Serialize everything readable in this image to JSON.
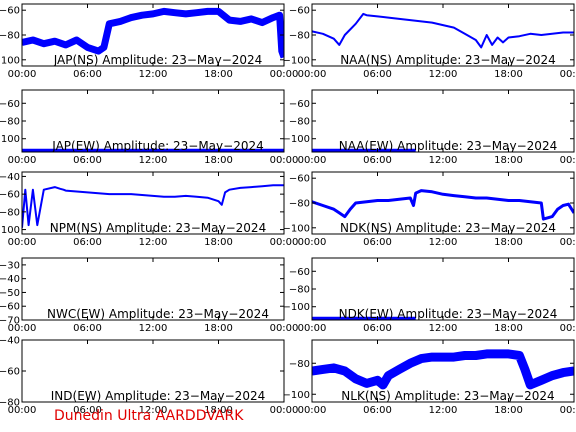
{
  "footer": "Dunedin Ultra AARDDVARK",
  "x_ticks": [
    "00:00",
    "06:00",
    "12:00",
    "18:00",
    "00:00"
  ],
  "chart_data": [
    {
      "type": "line",
      "title": "JAP(NS) Amplitude: 23−May−2024",
      "xlabel": "",
      "ylabel": "",
      "xlim": [
        0,
        24
      ],
      "ylim": [
        -105,
        -55
      ],
      "y_ticks": [
        -100,
        -80,
        -60
      ],
      "series": [
        {
          "color": "#0000ff",
          "band": 7,
          "x": [
            0,
            1,
            2,
            3,
            4,
            5,
            6,
            7,
            7.5,
            8,
            9,
            10,
            11,
            12,
            13,
            14,
            15,
            16,
            17,
            18,
            19,
            20,
            21,
            22,
            23,
            23.6,
            23.8,
            24
          ],
          "y": [
            -86,
            -84,
            -87,
            -85,
            -88,
            -84,
            -90,
            -93,
            -90,
            -71,
            -69,
            -66,
            -64,
            -63,
            -61,
            -62,
            -63,
            -62,
            -61,
            -61,
            -68,
            -69,
            -67,
            -70,
            -66,
            -64,
            -93,
            -98
          ]
        }
      ]
    },
    {
      "type": "line",
      "title": "NAA(NS) Amplitude: 23−May−2024",
      "xlabel": "",
      "ylabel": "",
      "xlim": [
        0,
        24
      ],
      "ylim": [
        -105,
        -55
      ],
      "y_ticks": [
        -100,
        -80,
        -60
      ],
      "series": [
        {
          "color": "#0000ff",
          "band": 2,
          "x": [
            0,
            1,
            2,
            2.5,
            3,
            4,
            4.7,
            5,
            6,
            7,
            8,
            9,
            10,
            11,
            12,
            13,
            14,
            15,
            15.5,
            16,
            16.5,
            17,
            17.5,
            18,
            19,
            20,
            21,
            22,
            23,
            24
          ],
          "y": [
            -77,
            -79,
            -83,
            -88,
            -80,
            -71,
            -63,
            -64,
            -65,
            -66,
            -67,
            -68,
            -69,
            -70,
            -72,
            -74,
            -79,
            -84,
            -90,
            -80,
            -88,
            -82,
            -86,
            -82,
            -81,
            -79,
            -80,
            -79,
            -78,
            -78
          ]
        }
      ]
    },
    {
      "type": "line",
      "title": "JAP(EW) Amplitude: 23−May−2024",
      "xlabel": "",
      "ylabel": "",
      "xlim": [
        0,
        24
      ],
      "ylim": [
        -115,
        -45
      ],
      "y_ticks": [
        -100,
        -80,
        -60
      ],
      "series": [
        {
          "color": "#0000ff",
          "band": 3,
          "x": [
            0,
            2,
            4,
            6,
            8,
            10,
            12,
            14,
            16,
            18,
            20,
            22,
            24
          ],
          "y": [
            -113,
            -113,
            -113,
            -113,
            -113,
            -113,
            -113,
            -113,
            -113,
            -113,
            -113,
            -113,
            -113
          ]
        }
      ]
    },
    {
      "type": "line",
      "title": "NAA(EW) Amplitude: 23−May−2024",
      "xlabel": "",
      "ylabel": "",
      "xlim": [
        0,
        24
      ],
      "ylim": [
        -115,
        -45
      ],
      "y_ticks": [
        -100,
        -80,
        -60
      ],
      "series": [
        {
          "color": "#0000ff",
          "band": 3,
          "x": [
            0,
            2,
            4,
            6,
            8,
            9.5
          ],
          "y": [
            -113,
            -113,
            -113,
            -113,
            -113,
            -113
          ]
        }
      ]
    },
    {
      "type": "line",
      "title": "NPM(NS) Amplitude: 23−May−2024",
      "xlabel": "",
      "ylabel": "",
      "xlim": [
        0,
        24
      ],
      "ylim": [
        -105,
        -35
      ],
      "y_ticks": [
        -100,
        -80,
        -60,
        -40
      ],
      "series": [
        {
          "color": "#0000ff",
          "band": 2,
          "x": [
            0,
            0.3,
            0.6,
            1.0,
            1.4,
            2,
            3,
            3.5,
            3.8,
            4,
            5,
            6,
            7,
            8,
            9,
            10,
            11,
            12,
            13,
            14,
            15,
            16,
            17,
            18,
            18.3,
            18.6,
            19,
            20,
            21,
            22,
            23,
            24
          ],
          "y": [
            -98,
            -55,
            -95,
            -55,
            -95,
            -55,
            -52,
            -54,
            -55,
            -56,
            -57,
            -58,
            -59,
            -60,
            -60,
            -60,
            -61,
            -62,
            -63,
            -63,
            -62,
            -63,
            -64,
            -68,
            -72,
            -58,
            -55,
            -53,
            -52,
            -51,
            -50,
            -50
          ]
        }
      ]
    },
    {
      "type": "line",
      "title": "NDK(NS) Amplitude: 23−May−2024",
      "xlabel": "",
      "ylabel": "",
      "xlim": [
        0,
        24
      ],
      "ylim": [
        -105,
        -55
      ],
      "y_ticks": [
        -100,
        -80,
        -60
      ],
      "series": [
        {
          "color": "#0000ff",
          "band": 3,
          "x": [
            0,
            1,
            2,
            2.5,
            3,
            3.5,
            4,
            5,
            6,
            7,
            8,
            9,
            9.3,
            9.5,
            10,
            11,
            12,
            13,
            14,
            15,
            16,
            17,
            18,
            19,
            20,
            21,
            21.2,
            22,
            22.5,
            23,
            23.5,
            24
          ],
          "y": [
            -79,
            -82,
            -85,
            -88,
            -91,
            -85,
            -80,
            -79,
            -78,
            -78,
            -77,
            -76,
            -82,
            -72,
            -70,
            -71,
            -73,
            -74,
            -75,
            -76,
            -76,
            -77,
            -78,
            -78,
            -79,
            -80,
            -93,
            -91,
            -85,
            -82,
            -81,
            -88
          ]
        }
      ]
    },
    {
      "type": "line",
      "title": "NWC(EW) Amplitude: 23−May−2024",
      "xlabel": "",
      "ylabel": "",
      "xlim": [
        0,
        24
      ],
      "ylim": [
        -70,
        -25
      ],
      "y_ticks": [
        -70,
        -60,
        -50,
        -40,
        -30
      ],
      "series": []
    },
    {
      "type": "line",
      "title": "NDK(EW) Amplitude: 23−May−2024",
      "xlabel": "",
      "ylabel": "",
      "xlim": [
        0,
        24
      ],
      "ylim": [
        -115,
        -45
      ],
      "y_ticks": [
        -100,
        -80,
        -60
      ],
      "series": [
        {
          "color": "#0000ff",
          "band": 3,
          "x": [
            0,
            2,
            4,
            6,
            8,
            9.5
          ],
          "y": [
            -113,
            -113,
            -113,
            -113,
            -113,
            -113
          ]
        }
      ]
    },
    {
      "type": "line",
      "title": "IND(EW) Amplitude: 23−May−2024",
      "xlabel": "",
      "ylabel": "",
      "xlim": [
        0,
        24
      ],
      "ylim": [
        -80,
        -40
      ],
      "y_ticks": [
        -80,
        -60,
        -40
      ],
      "series": []
    },
    {
      "type": "line",
      "title": "NLK(NS) Amplitude: 23−May−2024",
      "xlabel": "",
      "ylabel": "",
      "xlim": [
        0,
        24
      ],
      "ylim": [
        -105,
        -65
      ],
      "y_ticks": [
        -100,
        -80
      ],
      "series": [
        {
          "color": "#0000ff",
          "band": 9,
          "x": [
            0,
            1,
            2,
            3,
            4,
            5,
            6,
            6.5,
            7,
            8,
            9,
            10,
            11,
            12,
            13,
            14,
            15,
            16,
            17,
            18,
            19,
            19.5,
            20,
            21,
            22,
            23,
            24
          ],
          "y": [
            -85,
            -84,
            -83,
            -85,
            -90,
            -93,
            -91,
            -94,
            -88,
            -84,
            -80,
            -77,
            -76,
            -76,
            -76,
            -75,
            -75,
            -74,
            -74,
            -74,
            -75,
            -84,
            -94,
            -91,
            -88,
            -86,
            -85
          ]
        }
      ]
    }
  ]
}
